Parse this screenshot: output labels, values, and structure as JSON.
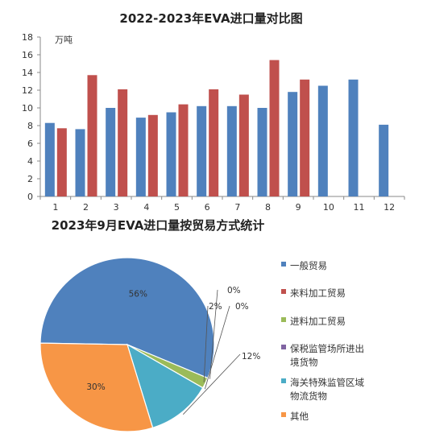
{
  "chart_data": [
    {
      "type": "bar",
      "title": "2022-2023年EVA进口量对比图",
      "unit_label": "万吨",
      "categories": [
        "1",
        "2",
        "3",
        "4",
        "5",
        "6",
        "7",
        "8",
        "9",
        "10",
        "11",
        "12"
      ],
      "ylim": [
        0,
        18
      ],
      "yticks": [
        0,
        2,
        4,
        6,
        8,
        10,
        12,
        14,
        16,
        18
      ],
      "grid": false,
      "colors": [
        "#4f81bd",
        "#c0504d"
      ],
      "series": [
        {
          "values": [
            8.3,
            7.6,
            10.0,
            8.9,
            9.5,
            10.2,
            10.2,
            10.0,
            11.8,
            12.5,
            13.2,
            8.1
          ]
        },
        {
          "values": [
            7.7,
            13.7,
            12.1,
            9.2,
            10.4,
            12.1,
            11.5,
            15.4,
            13.2,
            null,
            null,
            null
          ]
        }
      ]
    },
    {
      "type": "pie",
      "title": "2023年9月EVA进口量按贸易方式统计",
      "labels": [
        "一般贸易",
        "来料加工贸易",
        "进料加工贸易",
        "保税监管场所进出境货物",
        "海关特殊监管区域物流货物",
        "其他"
      ],
      "legend_lines": [
        [
          "一般贸易"
        ],
        [
          "来料加工贸易"
        ],
        [
          "进料加工贸易"
        ],
        [
          "保税监管场所进出",
          "境货物"
        ],
        [
          "海关特殊监管区域",
          "物流货物"
        ],
        [
          "其他"
        ]
      ],
      "values": [
        56,
        0,
        2,
        0,
        12,
        30
      ],
      "value_labels": [
        "56%",
        "0%",
        "2%",
        "0%",
        "12%",
        "30%"
      ],
      "colors": [
        "#4f81bd",
        "#c0504d",
        "#9bbb59",
        "#8064a2",
        "#4bacc6",
        "#f79646"
      ],
      "legend": "right"
    }
  ]
}
